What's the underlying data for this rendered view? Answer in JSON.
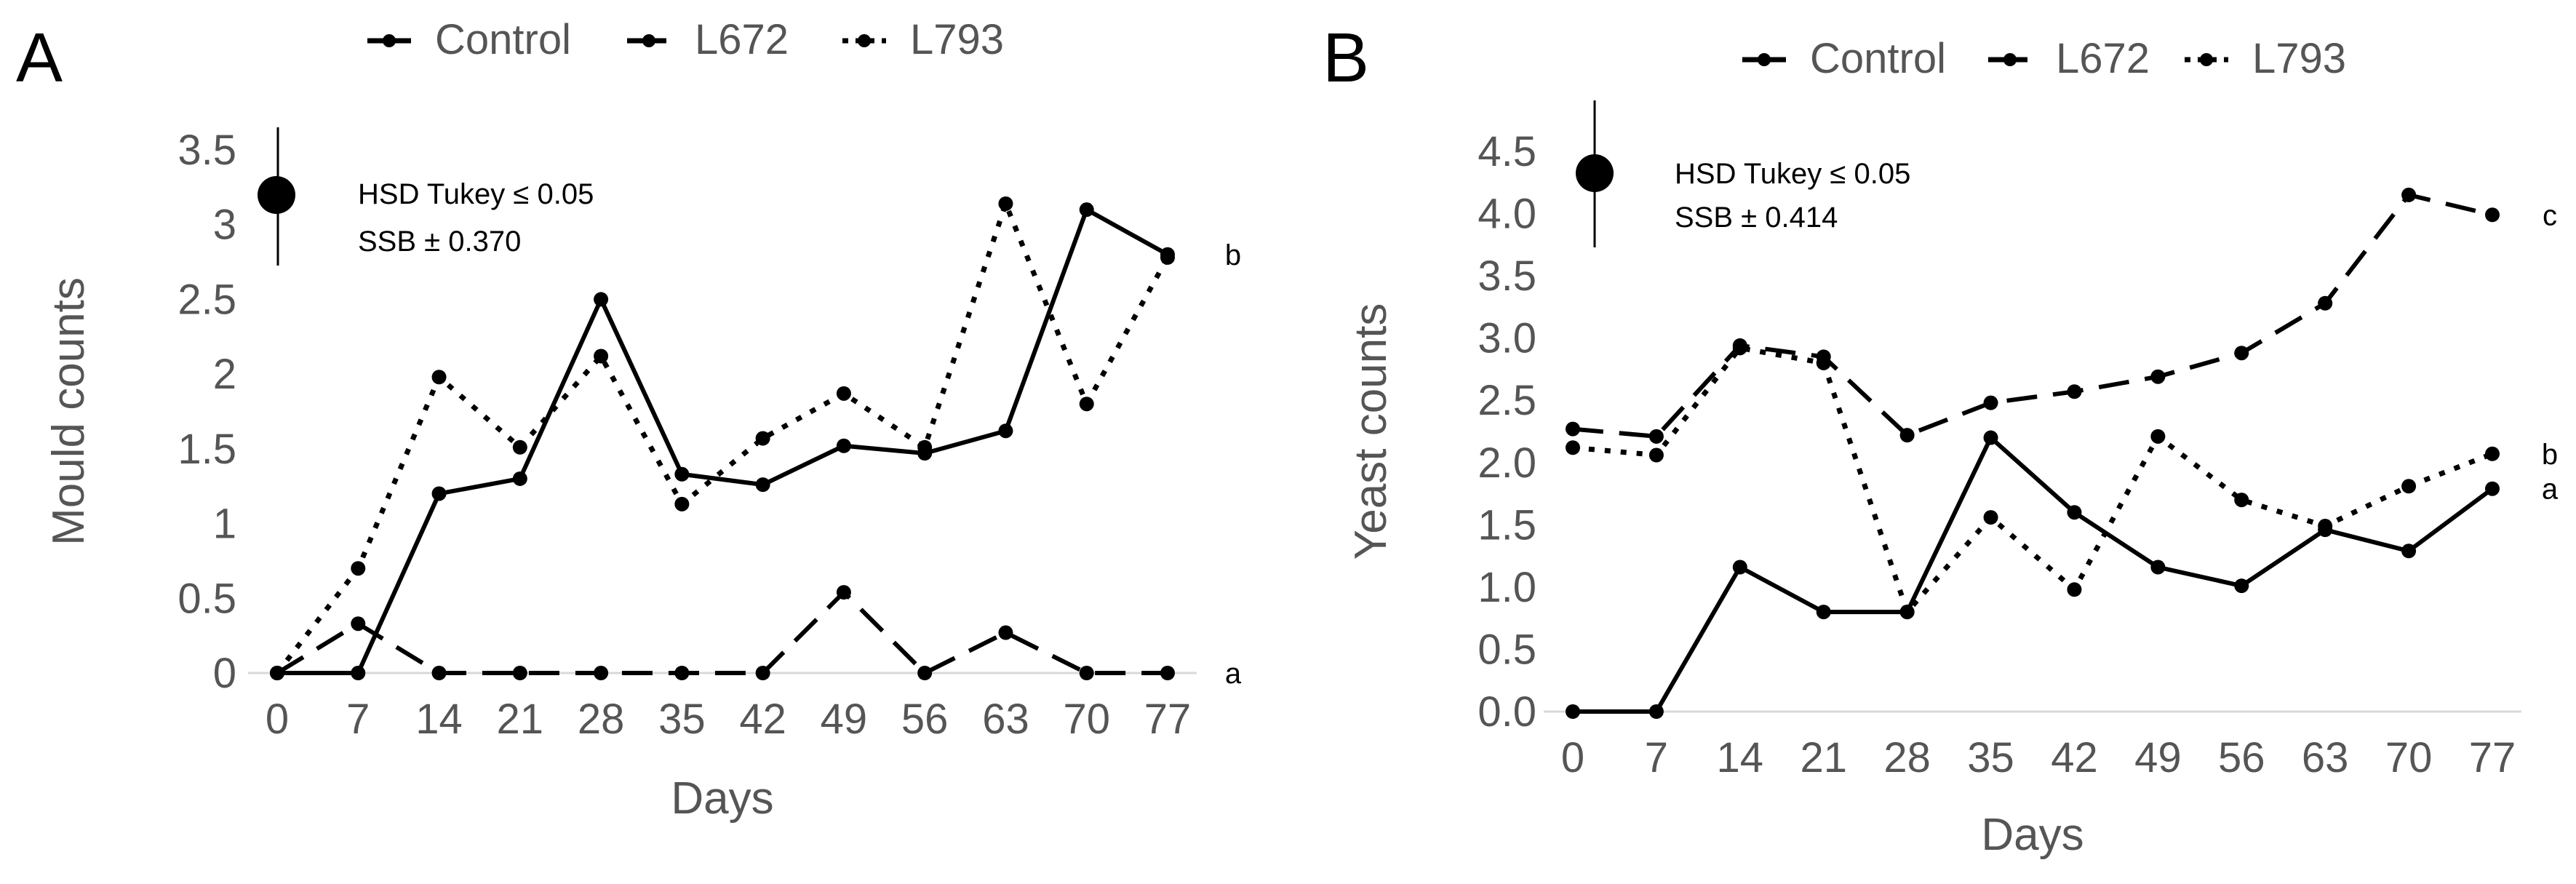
{
  "chart_data": [
    {
      "type": "line",
      "panel": "A",
      "title": "",
      "xlabel": "Days",
      "ylabel": "Mould counts",
      "categories": [
        "0",
        "7",
        "14",
        "21",
        "28",
        "35",
        "42",
        "49",
        "56",
        "63",
        "70",
        "77"
      ],
      "yticks": [
        "0",
        "0.5",
        "1",
        "1.5",
        "2",
        "2.5",
        "3",
        "3.5"
      ],
      "ylim": [
        0,
        3.5
      ],
      "grid": false,
      "legend_position": "top",
      "annotation": {
        "line1": "HSD Tukey ≤ 0.05",
        "line2": "SSB ± 0.370",
        "error_bar_half": 0.37
      },
      "series": [
        {
          "name": "Control",
          "style": "solid",
          "group": "b",
          "values": [
            0,
            0,
            1.2,
            1.3,
            2.5,
            1.33,
            1.26,
            1.52,
            1.47,
            1.62,
            3.1,
            2.8
          ]
        },
        {
          "name": "L672",
          "style": "dashed",
          "group": "a",
          "values": [
            0,
            0.33,
            0,
            0,
            0,
            0,
            0,
            0.54,
            0,
            0.27,
            0,
            0
          ]
        },
        {
          "name": "L793",
          "style": "dotted",
          "group": "",
          "values": [
            0,
            0.7,
            1.98,
            1.51,
            2.12,
            1.13,
            1.57,
            1.87,
            1.51,
            3.14,
            1.8,
            2.78
          ]
        }
      ]
    },
    {
      "type": "line",
      "panel": "B",
      "title": "",
      "xlabel": "Days",
      "ylabel": "Yeast counts",
      "categories": [
        "0",
        "7",
        "14",
        "21",
        "28",
        "35",
        "42",
        "49",
        "56",
        "63",
        "70",
        "77"
      ],
      "yticks": [
        "0.0",
        "0.5",
        "1.0",
        "1.5",
        "2.0",
        "2.5",
        "3.0",
        "3.5",
        "4.0",
        "4.5"
      ],
      "ylim": [
        0,
        4.5
      ],
      "grid": false,
      "legend_position": "top",
      "annotation": {
        "line1": "HSD Tukey ≤ 0.05",
        "line2": "SSB ± 0.414",
        "error_bar_half": 0.414
      },
      "series": [
        {
          "name": "Control",
          "style": "solid",
          "group": "a",
          "values": [
            0,
            0,
            1.16,
            0.8,
            0.8,
            2.2,
            1.6,
            1.16,
            1.01,
            1.46,
            1.29,
            1.79
          ]
        },
        {
          "name": "L672",
          "style": "dashed",
          "group": "c",
          "values": [
            2.27,
            2.21,
            2.94,
            2.85,
            2.22,
            2.48,
            2.57,
            2.69,
            2.88,
            3.28,
            4.15,
            3.99
          ]
        },
        {
          "name": "L793",
          "style": "dotted",
          "group": "b",
          "values": [
            2.12,
            2.06,
            2.92,
            2.8,
            0.8,
            1.56,
            0.98,
            2.21,
            1.7,
            1.49,
            1.81,
            2.07
          ]
        }
      ]
    }
  ]
}
